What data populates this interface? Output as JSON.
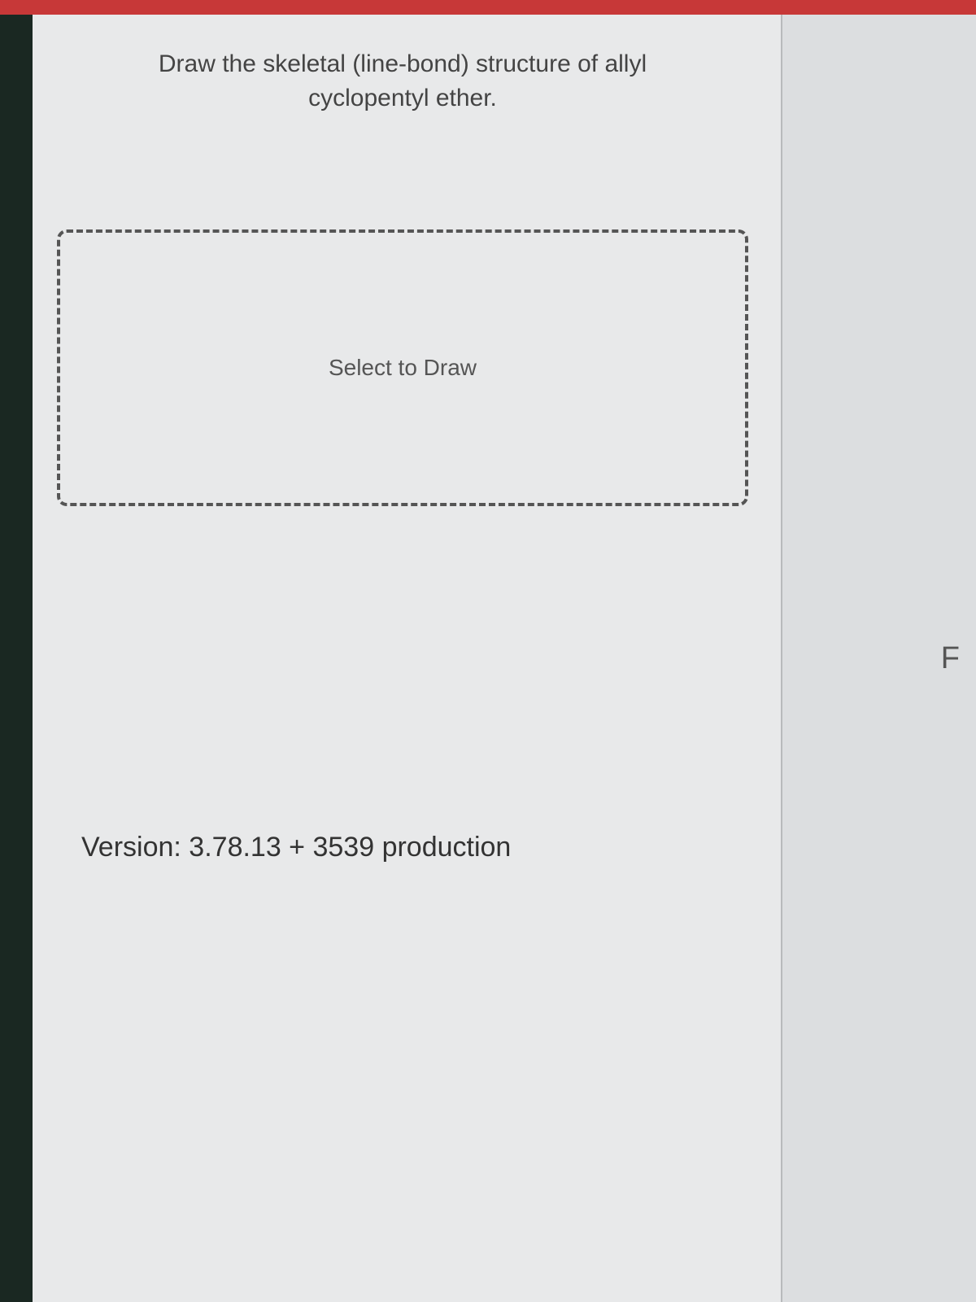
{
  "header": {
    "top_bar_color": "#c73838"
  },
  "question": {
    "prompt_text": "Draw the skeletal (line-bond) structure of allyl cyclopentyl ether."
  },
  "draw_area": {
    "placeholder_label": "Select to Draw",
    "border_color": "#555555",
    "border_style": "dashed",
    "background": "transparent"
  },
  "footer": {
    "version_label": "Version: 3.78.13 + 3539 production"
  },
  "right_panel": {
    "partial_letter": "F"
  },
  "colors": {
    "page_background": "#e8e9ea",
    "left_border": "#1a2822",
    "right_panel_background": "#dcdee0",
    "divider": "#b8babc",
    "text_primary": "#444444",
    "text_secondary": "#555555"
  }
}
